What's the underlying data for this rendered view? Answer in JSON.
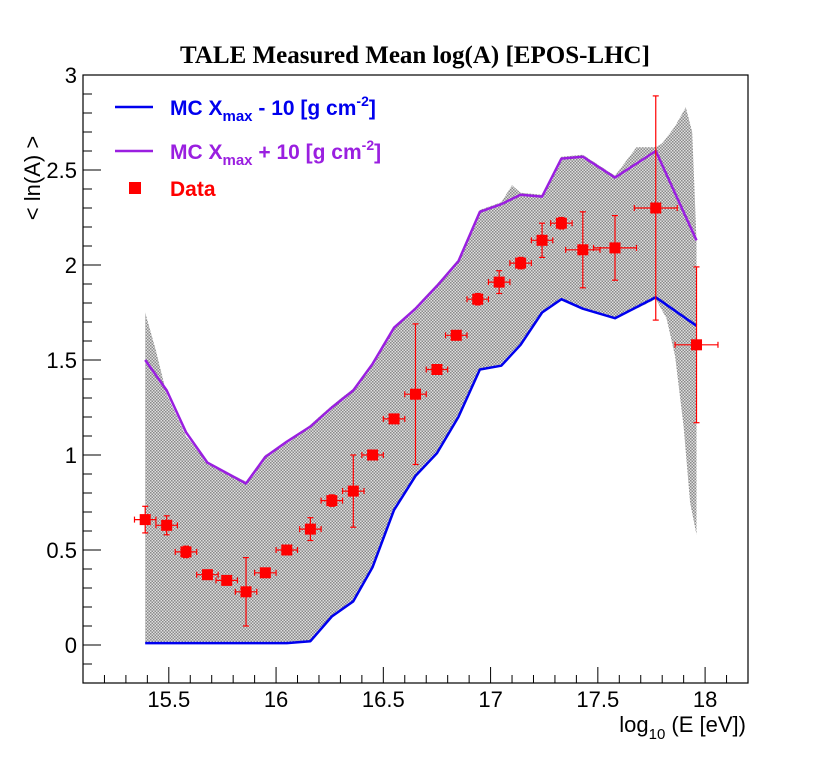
{
  "chart_data": {
    "type": "scatter",
    "title": "TALE Measured Mean log(A) [EPOS-LHC]",
    "xlabel": "log₁₀ (E [eV])",
    "xlabel_parts": {
      "pre": "log",
      "sub": "10",
      "post": " (E [eV])"
    },
    "ylabel": "< ln(A) >",
    "xlim": [
      15.1,
      18.2
    ],
    "ylim": [
      -0.2,
      3.0
    ],
    "x_ticks": [
      15.5,
      16,
      16.5,
      17,
      17.5,
      18
    ],
    "x_tick_labels": [
      "15.5",
      "16",
      "16.5",
      "17",
      "17.5",
      "18"
    ],
    "y_ticks": [
      0,
      0.5,
      1,
      1.5,
      2,
      2.5,
      3
    ],
    "y_tick_labels": [
      "0",
      "0.5",
      "1",
      "1.5",
      "2",
      "2.5",
      "3"
    ],
    "legend_position": "top-left",
    "legend": [
      {
        "key": "minus",
        "pre": "MC X",
        "sub": "max",
        "mid": " - 10 [g cm",
        "sup": "-2",
        "post": "]",
        "color": "#0000ee",
        "marker": "line"
      },
      {
        "key": "plus",
        "pre": "MC X",
        "sub": "max",
        "mid": " + 10 [g cm",
        "sup": "-2",
        "post": "]",
        "color": "#9a1fe0",
        "marker": "line"
      },
      {
        "key": "data",
        "label": "Data",
        "color": "#ff0000",
        "marker": "square"
      }
    ],
    "band": {
      "name": "Systematic uncertainty band",
      "color": "#b8b8b8",
      "upper": [
        [
          15.39,
          1.75
        ],
        [
          15.44,
          1.55
        ],
        [
          15.49,
          1.32
        ],
        [
          15.58,
          1.1
        ],
        [
          15.68,
          0.96
        ],
        [
          15.86,
          0.86
        ],
        [
          15.95,
          1.0
        ],
        [
          16.05,
          1.06
        ],
        [
          16.16,
          1.16
        ],
        [
          16.26,
          1.26
        ],
        [
          16.36,
          1.35
        ],
        [
          16.45,
          1.48
        ],
        [
          16.55,
          1.67
        ],
        [
          16.65,
          1.78
        ],
        [
          16.75,
          1.9
        ],
        [
          16.85,
          2.03
        ],
        [
          16.95,
          2.29
        ],
        [
          17.05,
          2.33
        ],
        [
          17.1,
          2.42
        ],
        [
          17.14,
          2.38
        ],
        [
          17.24,
          2.37
        ],
        [
          17.33,
          2.57
        ],
        [
          17.43,
          2.58
        ],
        [
          17.58,
          2.47
        ],
        [
          17.68,
          2.62
        ],
        [
          17.77,
          2.62
        ],
        [
          17.8,
          2.64
        ],
        [
          17.86,
          2.73
        ],
        [
          17.91,
          2.83
        ],
        [
          17.94,
          2.7
        ],
        [
          17.96,
          2.13
        ]
      ],
      "lower": [
        [
          17.96,
          0.58
        ],
        [
          17.93,
          0.75
        ],
        [
          17.9,
          1.15
        ],
        [
          17.86,
          1.52
        ],
        [
          17.82,
          1.72
        ],
        [
          17.77,
          1.82
        ],
        [
          17.68,
          1.77
        ],
        [
          17.58,
          1.72
        ],
        [
          17.43,
          1.77
        ],
        [
          17.33,
          1.82
        ],
        [
          17.24,
          1.75
        ],
        [
          17.14,
          1.58
        ],
        [
          17.05,
          1.47
        ],
        [
          16.95,
          1.45
        ],
        [
          16.85,
          1.2
        ],
        [
          16.75,
          1.01
        ],
        [
          16.65,
          0.89
        ],
        [
          16.55,
          0.71
        ],
        [
          16.45,
          0.41
        ],
        [
          16.36,
          0.23
        ],
        [
          16.26,
          0.15
        ],
        [
          16.16,
          0.02
        ],
        [
          16.05,
          0.01
        ],
        [
          15.86,
          0.01
        ],
        [
          15.68,
          0.01
        ],
        [
          15.58,
          0.01
        ],
        [
          15.49,
          0.01
        ],
        [
          15.39,
          0.01
        ]
      ]
    },
    "series": [
      {
        "name": "MC Xmax - 10 [g cm-2]",
        "color": "#0000ee",
        "x": [
          15.39,
          15.49,
          15.58,
          15.68,
          15.86,
          16.05,
          16.16,
          16.26,
          16.36,
          16.45,
          16.55,
          16.65,
          16.75,
          16.85,
          16.95,
          17.05,
          17.14,
          17.24,
          17.33,
          17.43,
          17.58,
          17.77,
          17.96
        ],
        "y": [
          0.01,
          0.01,
          0.01,
          0.01,
          0.01,
          0.01,
          0.02,
          0.15,
          0.23,
          0.41,
          0.71,
          0.89,
          1.01,
          1.2,
          1.45,
          1.47,
          1.58,
          1.75,
          1.82,
          1.77,
          1.72,
          1.83,
          1.68
        ]
      },
      {
        "name": "MC Xmax + 10 [g cm-2]",
        "color": "#9a1fe0",
        "x": [
          15.39,
          15.49,
          15.58,
          15.68,
          15.86,
          15.95,
          16.05,
          16.16,
          16.26,
          16.36,
          16.45,
          16.55,
          16.65,
          16.75,
          16.85,
          16.95,
          17.05,
          17.14,
          17.24,
          17.33,
          17.43,
          17.58,
          17.77,
          17.96
        ],
        "y": [
          1.5,
          1.34,
          1.12,
          0.96,
          0.85,
          0.99,
          1.07,
          1.15,
          1.25,
          1.34,
          1.48,
          1.67,
          1.77,
          1.89,
          2.02,
          2.28,
          2.32,
          2.37,
          2.36,
          2.56,
          2.57,
          2.46,
          2.6,
          2.13
        ]
      },
      {
        "name": "Data",
        "color": "#ff0000",
        "x": [
          15.39,
          15.49,
          15.58,
          15.68,
          15.77,
          15.86,
          15.95,
          16.05,
          16.16,
          16.26,
          16.36,
          16.45,
          16.55,
          16.65,
          16.75,
          16.84,
          16.94,
          17.04,
          17.14,
          17.24,
          17.33,
          17.43,
          17.58,
          17.77,
          17.96
        ],
        "y": [
          0.66,
          0.63,
          0.49,
          0.37,
          0.34,
          0.28,
          0.38,
          0.5,
          0.61,
          0.76,
          0.81,
          1.0,
          1.19,
          1.32,
          1.45,
          1.63,
          1.82,
          1.91,
          2.01,
          2.13,
          2.22,
          2.08,
          2.09,
          2.3,
          1.58
        ],
        "yerr": [
          0.07,
          0.05,
          0.03,
          0.02,
          0.02,
          0.18,
          0.02,
          0.02,
          0.06,
          0.03,
          0.19,
          0.02,
          0.02,
          0.37,
          0.02,
          0.02,
          0.03,
          0.06,
          0.03,
          0.09,
          0.03,
          0.2,
          0.17,
          0.59,
          0.41
        ],
        "xerr": [
          0.05,
          0.05,
          0.05,
          0.05,
          0.05,
          0.05,
          0.05,
          0.05,
          0.05,
          0.05,
          0.05,
          0.05,
          0.05,
          0.05,
          0.05,
          0.05,
          0.05,
          0.05,
          0.05,
          0.05,
          0.05,
          0.08,
          0.1,
          0.1,
          0.1
        ]
      }
    ]
  }
}
